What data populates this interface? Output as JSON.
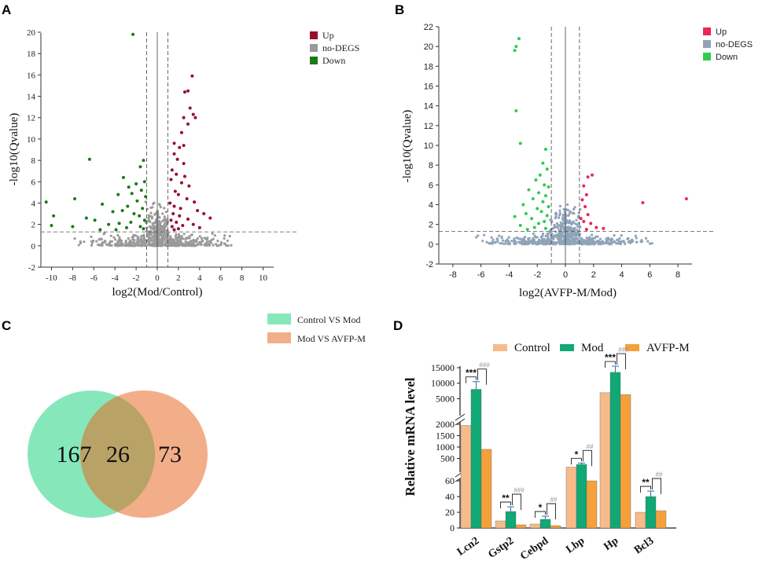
{
  "panels": {
    "a": "A",
    "b": "B",
    "c": "C",
    "d": "D"
  },
  "chart_data": [
    {
      "type": "scatter",
      "id": "A",
      "xlabel": "log2(Mod/Control)",
      "ylabel": "-log10(Qvalue)",
      "xlim": [
        -11,
        11
      ],
      "ylim": [
        -2,
        20
      ],
      "xticks": [
        "-10",
        "-8",
        "-6",
        "-4",
        "-2",
        "0",
        "2",
        "4",
        "6",
        "8",
        "10"
      ],
      "yticks": [
        "-2",
        "0",
        "2",
        "4",
        "6",
        "8",
        "10",
        "12",
        "14",
        "16",
        "18",
        "20"
      ],
      "thresholds": {
        "x": [
          -1,
          0,
          1
        ],
        "y": 1.3
      },
      "legend": [
        "Up",
        "no-DEGS",
        "Down"
      ],
      "colors": {
        "up": "#9b0d2b",
        "none": "#9a9a9a",
        "down": "#1a7a16"
      },
      "series": [
        {
          "name": "Up",
          "points": [
            [
              3.3,
              15.9
            ],
            [
              2.9,
              14.5
            ],
            [
              2.6,
              14.4
            ],
            [
              3.1,
              12.9
            ],
            [
              3.4,
              12.3
            ],
            [
              3.6,
              12.0
            ],
            [
              2.5,
              12.0
            ],
            [
              2.9,
              11.4
            ],
            [
              2.3,
              10.6
            ],
            [
              1.6,
              9.6
            ],
            [
              2.5,
              9.4
            ],
            [
              2.1,
              9.2
            ],
            [
              1.6,
              8.6
            ],
            [
              1.9,
              8.1
            ],
            [
              2.5,
              7.7
            ],
            [
              1.4,
              7.1
            ],
            [
              1.8,
              6.7
            ],
            [
              2.6,
              6.5
            ],
            [
              1.3,
              6.2
            ],
            [
              2.3,
              5.9
            ],
            [
              3.0,
              5.6
            ],
            [
              1.7,
              5.1
            ],
            [
              2.0,
              4.8
            ],
            [
              2.8,
              4.4
            ],
            [
              3.5,
              4.1
            ],
            [
              1.2,
              4.0
            ],
            [
              1.6,
              3.7
            ],
            [
              2.2,
              3.5
            ],
            [
              3.8,
              3.3
            ],
            [
              4.4,
              3.0
            ],
            [
              1.5,
              3.0
            ],
            [
              2.1,
              2.8
            ],
            [
              5.0,
              2.6
            ],
            [
              2.9,
              2.5
            ],
            [
              1.3,
              2.4
            ],
            [
              1.8,
              2.2
            ],
            [
              3.4,
              2.0
            ],
            [
              2.4,
              1.9
            ],
            [
              1.4,
              1.8
            ],
            [
              2.0,
              1.6
            ],
            [
              4.0,
              1.7
            ],
            [
              1.6,
              1.5
            ]
          ]
        },
        {
          "name": "Down",
          "points": [
            [
              -2.3,
              19.8
            ],
            [
              -6.4,
              8.1
            ],
            [
              -1.3,
              8.0
            ],
            [
              -1.6,
              7.4
            ],
            [
              -3.2,
              6.4
            ],
            [
              -1.2,
              6.0
            ],
            [
              -2.0,
              5.8
            ],
            [
              -2.7,
              5.5
            ],
            [
              -1.5,
              5.2
            ],
            [
              -2.4,
              4.9
            ],
            [
              -3.7,
              4.8
            ],
            [
              -1.1,
              4.6
            ],
            [
              -7.8,
              4.4
            ],
            [
              -1.9,
              4.2
            ],
            [
              -10.5,
              4.1
            ],
            [
              -5.2,
              3.9
            ],
            [
              -2.8,
              3.7
            ],
            [
              -1.4,
              3.5
            ],
            [
              -3.3,
              3.3
            ],
            [
              -4.2,
              3.2
            ],
            [
              -2.2,
              3.0
            ],
            [
              -1.7,
              2.8
            ],
            [
              -9.8,
              2.8
            ],
            [
              -6.7,
              2.6
            ],
            [
              -5.9,
              2.4
            ],
            [
              -1.2,
              2.4
            ],
            [
              -2.5,
              2.2
            ],
            [
              -3.6,
              2.1
            ],
            [
              -4.6,
              2.0
            ],
            [
              -8.0,
              1.8
            ],
            [
              -10.0,
              1.9
            ],
            [
              -1.6,
              1.8
            ],
            [
              -2.9,
              1.7
            ],
            [
              -1.3,
              1.6
            ],
            [
              -3.9,
              1.5
            ],
            [
              -5.4,
              1.5
            ]
          ]
        }
      ]
    },
    {
      "type": "scatter",
      "id": "B",
      "xlabel": "log2(AVFP-M/Mod)",
      "ylabel": "-log10(Qvalue)",
      "xlim": [
        -9,
        9
      ],
      "ylim": [
        -2,
        22
      ],
      "xticks": [
        "-8",
        "-6",
        "-4",
        "-2",
        "0",
        "2",
        "4",
        "6",
        "8"
      ],
      "yticks": [
        "-2",
        "0",
        "2",
        "4",
        "6",
        "8",
        "10",
        "12",
        "14",
        "16",
        "18",
        "20",
        "22"
      ],
      "thresholds": {
        "x": [
          -1,
          0,
          1
        ],
        "y": 1.3
      },
      "legend": [
        "Up",
        "no-DEGS",
        "Down"
      ],
      "colors": {
        "up": "#e8265a",
        "none": "#8fa4b8",
        "down": "#2dcd52"
      },
      "series": [
        {
          "name": "Up",
          "points": [
            [
              8.6,
              4.6
            ],
            [
              5.5,
              4.2
            ],
            [
              1.9,
              7.0
            ],
            [
              1.6,
              6.8
            ],
            [
              1.3,
              5.9
            ],
            [
              1.5,
              5.0
            ],
            [
              1.2,
              4.5
            ],
            [
              1.4,
              3.8
            ],
            [
              1.6,
              3.0
            ],
            [
              1.1,
              2.6
            ],
            [
              1.3,
              2.3
            ],
            [
              1.8,
              2.1
            ],
            [
              2.2,
              1.7
            ],
            [
              2.7,
              1.6
            ],
            [
              1.5,
              1.5
            ]
          ]
        },
        {
          "name": "Down",
          "points": [
            [
              -3.3,
              20.8
            ],
            [
              -3.5,
              20.0
            ],
            [
              -3.6,
              19.6
            ],
            [
              -3.5,
              13.5
            ],
            [
              -3.2,
              10.2
            ],
            [
              -1.4,
              9.6
            ],
            [
              -1.6,
              8.2
            ],
            [
              -1.3,
              7.6
            ],
            [
              -1.8,
              7.0
            ],
            [
              -2.1,
              6.5
            ],
            [
              -1.5,
              6.0
            ],
            [
              -1.2,
              5.8
            ],
            [
              -2.6,
              5.5
            ],
            [
              -1.9,
              5.2
            ],
            [
              -1.4,
              4.9
            ],
            [
              -2.3,
              4.6
            ],
            [
              -1.6,
              4.3
            ],
            [
              -3.0,
              4.0
            ],
            [
              -1.2,
              3.8
            ],
            [
              -2.0,
              3.6
            ],
            [
              -1.7,
              3.3
            ],
            [
              -2.8,
              3.1
            ],
            [
              -3.6,
              2.8
            ],
            [
              -1.3,
              2.9
            ],
            [
              -2.4,
              2.6
            ],
            [
              -1.5,
              2.3
            ],
            [
              -1.9,
              2.1
            ],
            [
              -3.2,
              1.9
            ],
            [
              -2.2,
              1.7
            ],
            [
              -1.4,
              1.6
            ],
            [
              -2.7,
              1.5
            ]
          ]
        }
      ]
    },
    {
      "type": "venn",
      "id": "C",
      "sets": [
        {
          "name": "Control VS Mod",
          "only": "167",
          "color": "#86e7bb"
        },
        {
          "name": "Mod VS AVFP-M",
          "only": "73",
          "color": "#f2ae88"
        }
      ],
      "overlap": "26",
      "overlap_color": "#b9a265"
    },
    {
      "type": "bar",
      "id": "D",
      "ylabel": "Relative mRNA level",
      "categories": [
        "Lcn2",
        "Gstp2",
        "Cebpd",
        "Lbp",
        "Hp",
        "Bcl3"
      ],
      "series": [
        {
          "name": "Control",
          "color": "#f7bb8a",
          "values": [
            1950,
            9,
            5,
            120,
            6900,
            20
          ]
        },
        {
          "name": "Mod",
          "color": "#10a874",
          "values": [
            8000,
            21,
            11,
            240,
            13500,
            40
          ]
        },
        {
          "name": "AVFP-M",
          "color": "#f5a13b",
          "values": [
            900,
            4,
            3,
            60,
            6300,
            22
          ]
        }
      ],
      "errors": {
        "Mod": [
          2500,
          6,
          4,
          60,
          2000,
          7
        ]
      },
      "axis_segments": [
        {
          "range": [
            0,
            60
          ],
          "ticks": [
            "0",
            "20",
            "40",
            "60"
          ]
        },
        {
          "range": [
            0,
            2000
          ],
          "ticks": [
            "500",
            "1000",
            "1500",
            "2000"
          ]
        },
        {
          "range": [
            0,
            15000
          ],
          "ticks": [
            "5000",
            "10000",
            "15000"
          ]
        }
      ],
      "significance": {
        "control_vs_mod": [
          "***",
          "**",
          "*",
          "*",
          "***",
          "**"
        ],
        "mod_vs_avfp": [
          "###",
          "###",
          "##",
          "##",
          "###",
          "##"
        ]
      }
    }
  ]
}
